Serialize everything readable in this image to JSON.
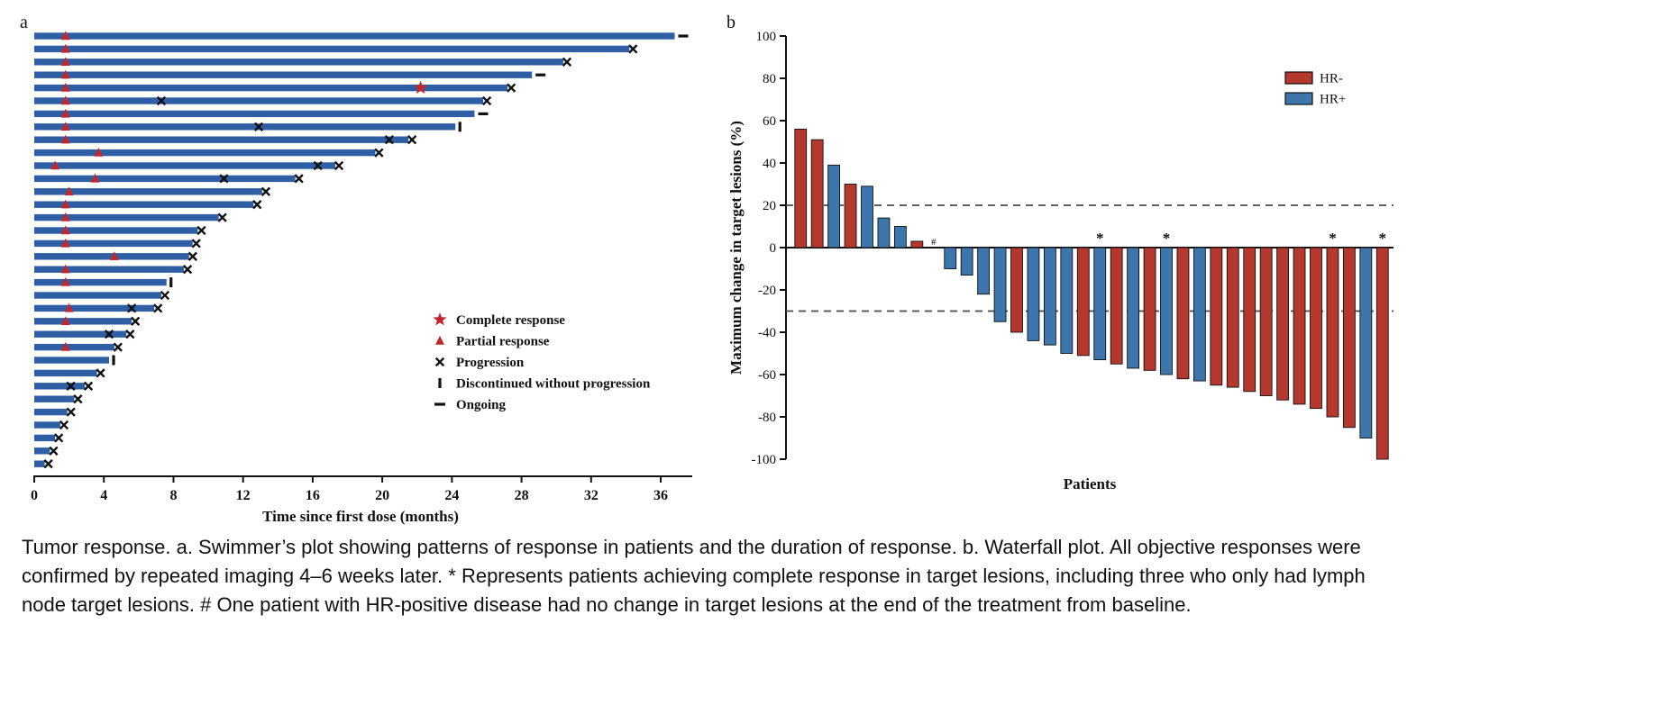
{
  "figure": {
    "panel_a_label": "a",
    "panel_b_label": "b",
    "caption": "Tumor response. a. Swimmer’s plot showing patterns of response in patients and the duration of response. b. Waterfall plot. All objective responses were confirmed by repeated imaging 4–6 weeks later. * Represents patients achieving complete response in target lesions, including three who only had lymph node target lesions. # One patient with HR-positive disease had no change in target lesions at the end of the treatment from baseline."
  },
  "colors": {
    "bar_blue": "#2e5fa4",
    "marker_red": "#c1272d",
    "hr_neg_red": "#b5382e",
    "hr_pos_blue": "#3d76ad",
    "axis_black": "#111111",
    "reference_gray": "#4a4a4a"
  },
  "chart_data": [
    {
      "type": "swimmer",
      "title": "",
      "xlabel": "Time since first dose (months)",
      "xlim": [
        0,
        37.5
      ],
      "xticks": [
        0,
        4,
        8,
        12,
        16,
        20,
        24,
        28,
        32,
        36
      ],
      "legend": [
        {
          "symbol": "star",
          "label": "Complete response"
        },
        {
          "symbol": "triangle",
          "label": "Partial response"
        },
        {
          "symbol": "x",
          "label": "Progression"
        },
        {
          "symbol": "tick",
          "label": "Discontinued without progression"
        },
        {
          "symbol": "dash",
          "label": "Ongoing"
        }
      ],
      "patients": [
        {
          "duration_months": 36.8,
          "partial_response_months": [
            1.8
          ],
          "complete_response_months": [],
          "progression_marks_months": [],
          "end": "ongoing"
        },
        {
          "duration_months": 34.2,
          "partial_response_months": [
            1.8
          ],
          "complete_response_months": [],
          "progression_marks_months": [],
          "end": "progression"
        },
        {
          "duration_months": 30.4,
          "partial_response_months": [
            1.8
          ],
          "complete_response_months": [],
          "progression_marks_months": [],
          "end": "progression"
        },
        {
          "duration_months": 28.6,
          "partial_response_months": [
            1.8
          ],
          "complete_response_months": [],
          "progression_marks_months": [],
          "end": "ongoing"
        },
        {
          "duration_months": 27.2,
          "partial_response_months": [
            1.8
          ],
          "complete_response_months": [
            22.2
          ],
          "progression_marks_months": [],
          "end": "progression"
        },
        {
          "duration_months": 25.8,
          "partial_response_months": [
            1.8
          ],
          "complete_response_months": [],
          "progression_marks_months": [
            7.3
          ],
          "end": "progression"
        },
        {
          "duration_months": 25.3,
          "partial_response_months": [
            1.8
          ],
          "complete_response_months": [],
          "progression_marks_months": [],
          "end": "ongoing"
        },
        {
          "duration_months": 24.2,
          "partial_response_months": [
            1.8
          ],
          "complete_response_months": [],
          "progression_marks_months": [
            12.9
          ],
          "end": "discontinued"
        },
        {
          "duration_months": 21.5,
          "partial_response_months": [
            1.8
          ],
          "complete_response_months": [],
          "progression_marks_months": [
            20.4
          ],
          "end": "progression"
        },
        {
          "duration_months": 19.6,
          "partial_response_months": [
            3.7
          ],
          "complete_response_months": [],
          "progression_marks_months": [],
          "end": "progression"
        },
        {
          "duration_months": 17.3,
          "partial_response_months": [
            1.2
          ],
          "complete_response_months": [],
          "progression_marks_months": [
            16.3
          ],
          "end": "progression"
        },
        {
          "duration_months": 15.0,
          "partial_response_months": [
            3.5
          ],
          "complete_response_months": [],
          "progression_marks_months": [
            10.9
          ],
          "end": "progression"
        },
        {
          "duration_months": 13.1,
          "partial_response_months": [
            2.0
          ],
          "complete_response_months": [],
          "progression_marks_months": [],
          "end": "progression"
        },
        {
          "duration_months": 12.6,
          "partial_response_months": [
            1.8
          ],
          "complete_response_months": [],
          "progression_marks_months": [],
          "end": "progression"
        },
        {
          "duration_months": 10.6,
          "partial_response_months": [
            1.8
          ],
          "complete_response_months": [],
          "progression_marks_months": [],
          "end": "progression"
        },
        {
          "duration_months": 9.4,
          "partial_response_months": [
            1.8
          ],
          "complete_response_months": [],
          "progression_marks_months": [],
          "end": "progression"
        },
        {
          "duration_months": 9.1,
          "partial_response_months": [
            1.8
          ],
          "complete_response_months": [],
          "progression_marks_months": [],
          "end": "progression"
        },
        {
          "duration_months": 8.9,
          "partial_response_months": [
            4.6
          ],
          "complete_response_months": [],
          "progression_marks_months": [],
          "end": "progression"
        },
        {
          "duration_months": 8.6,
          "partial_response_months": [
            1.8
          ],
          "complete_response_months": [],
          "progression_marks_months": [],
          "end": "progression"
        },
        {
          "duration_months": 7.6,
          "partial_response_months": [
            1.8
          ],
          "complete_response_months": [],
          "progression_marks_months": [],
          "end": "discontinued"
        },
        {
          "duration_months": 7.3,
          "partial_response_months": [],
          "complete_response_months": [],
          "progression_marks_months": [],
          "end": "progression"
        },
        {
          "duration_months": 6.9,
          "partial_response_months": [
            2.0
          ],
          "complete_response_months": [],
          "progression_marks_months": [
            5.6
          ],
          "end": "progression"
        },
        {
          "duration_months": 5.6,
          "partial_response_months": [
            1.8
          ],
          "complete_response_months": [],
          "progression_marks_months": [],
          "end": "progression"
        },
        {
          "duration_months": 5.3,
          "partial_response_months": [],
          "complete_response_months": [],
          "progression_marks_months": [
            4.3
          ],
          "end": "progression"
        },
        {
          "duration_months": 4.6,
          "partial_response_months": [
            1.8
          ],
          "complete_response_months": [],
          "progression_marks_months": [],
          "end": "progression"
        },
        {
          "duration_months": 4.3,
          "partial_response_months": [],
          "complete_response_months": [],
          "progression_marks_months": [],
          "end": "discontinued"
        },
        {
          "duration_months": 3.6,
          "partial_response_months": [],
          "complete_response_months": [],
          "progression_marks_months": [],
          "end": "progression"
        },
        {
          "duration_months": 2.9,
          "partial_response_months": [],
          "complete_response_months": [],
          "progression_marks_months": [
            2.1
          ],
          "end": "progression"
        },
        {
          "duration_months": 2.3,
          "partial_response_months": [],
          "complete_response_months": [],
          "progression_marks_months": [],
          "end": "progression"
        },
        {
          "duration_months": 1.9,
          "partial_response_months": [],
          "complete_response_months": [],
          "progression_marks_months": [],
          "end": "progression"
        },
        {
          "duration_months": 1.5,
          "partial_response_months": [],
          "complete_response_months": [],
          "progression_marks_months": [],
          "end": "progression"
        },
        {
          "duration_months": 1.2,
          "partial_response_months": [],
          "complete_response_months": [],
          "progression_marks_months": [],
          "end": "progression"
        },
        {
          "duration_months": 0.9,
          "partial_response_months": [],
          "complete_response_months": [],
          "progression_marks_months": [],
          "end": "progression"
        },
        {
          "duration_months": 0.6,
          "partial_response_months": [],
          "complete_response_months": [],
          "progression_marks_months": [],
          "end": "progression"
        }
      ]
    },
    {
      "type": "bar",
      "title": "",
      "xlabel": "Patients",
      "ylabel": "Maximum change in target lesions (%)",
      "ylim": [
        -100,
        100
      ],
      "yticks": [
        -100,
        -80,
        -60,
        -40,
        -20,
        0,
        20,
        40,
        60,
        80,
        100
      ],
      "reference_lines": [
        20,
        -30
      ],
      "legend": [
        {
          "label": "HR-",
          "color": "#b5382e"
        },
        {
          "label": "HR+",
          "color": "#3d76ad"
        }
      ],
      "patients": [
        {
          "value": 56,
          "group": "HR-"
        },
        {
          "value": 51,
          "group": "HR-"
        },
        {
          "value": 39,
          "group": "HR+"
        },
        {
          "value": 30,
          "group": "HR-"
        },
        {
          "value": 29,
          "group": "HR+"
        },
        {
          "value": 14,
          "group": "HR+"
        },
        {
          "value": 10,
          "group": "HR+"
        },
        {
          "value": 3,
          "group": "HR-"
        },
        {
          "value": 0,
          "group": "HR+",
          "annotation": "#"
        },
        {
          "value": -10,
          "group": "HR+"
        },
        {
          "value": -13,
          "group": "HR+"
        },
        {
          "value": -22,
          "group": "HR+"
        },
        {
          "value": -35,
          "group": "HR+"
        },
        {
          "value": -40,
          "group": "HR-"
        },
        {
          "value": -44,
          "group": "HR+"
        },
        {
          "value": -46,
          "group": "HR+"
        },
        {
          "value": -50,
          "group": "HR+"
        },
        {
          "value": -51,
          "group": "HR-"
        },
        {
          "value": -53,
          "group": "HR+",
          "annotation": "*"
        },
        {
          "value": -55,
          "group": "HR-"
        },
        {
          "value": -57,
          "group": "HR+"
        },
        {
          "value": -58,
          "group": "HR-"
        },
        {
          "value": -60,
          "group": "HR+",
          "annotation": "*"
        },
        {
          "value": -62,
          "group": "HR-"
        },
        {
          "value": -63,
          "group": "HR+"
        },
        {
          "value": -65,
          "group": "HR-"
        },
        {
          "value": -66,
          "group": "HR-"
        },
        {
          "value": -68,
          "group": "HR-"
        },
        {
          "value": -70,
          "group": "HR-"
        },
        {
          "value": -72,
          "group": "HR-"
        },
        {
          "value": -74,
          "group": "HR-"
        },
        {
          "value": -76,
          "group": "HR-"
        },
        {
          "value": -80,
          "group": "HR-",
          "annotation": "*"
        },
        {
          "value": -85,
          "group": "HR-"
        },
        {
          "value": -90,
          "group": "HR+"
        },
        {
          "value": -100,
          "group": "HR-",
          "annotation": "*"
        }
      ]
    }
  ]
}
